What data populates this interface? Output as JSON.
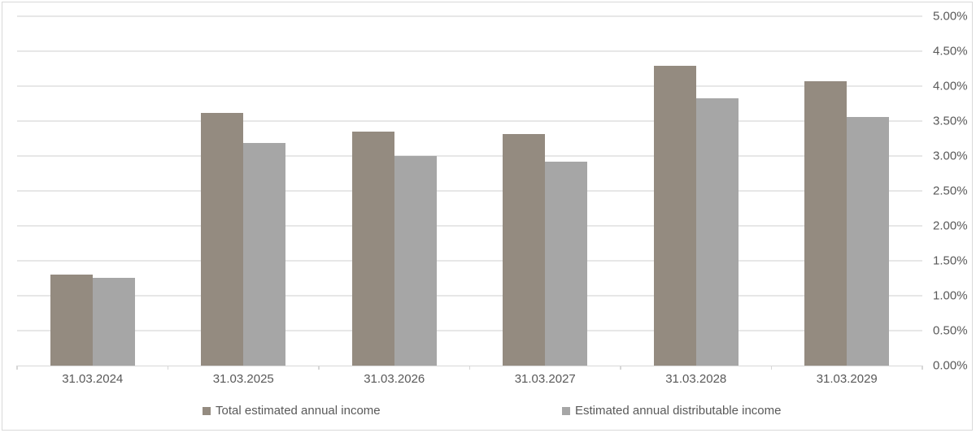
{
  "chart_data": {
    "type": "bar",
    "title": "",
    "categories": [
      "31.03.2024",
      "31.03.2025",
      "31.03.2026",
      "31.03.2027",
      "31.03.2028",
      "31.03.2029"
    ],
    "series": [
      {
        "name": "Total estimated annual income",
        "color": "#948B80",
        "values": [
          1.3,
          3.62,
          3.35,
          3.31,
          4.29,
          4.07
        ]
      },
      {
        "name": "Estimated annual distributable income",
        "color": "#A6A6A6",
        "values": [
          1.26,
          3.19,
          3.0,
          2.92,
          3.82,
          3.56
        ]
      }
    ],
    "y_axis": {
      "min": 0,
      "max": 5,
      "step": 0.5,
      "side": "right",
      "unit": "%",
      "tick_labels": [
        "0.00%",
        "0.50%",
        "1.00%",
        "1.50%",
        "2.00%",
        "2.50%",
        "3.00%",
        "3.50%",
        "4.00%",
        "4.50%",
        "5.00%"
      ]
    },
    "x_axis": {
      "tick_labels": [
        "31.03.2024",
        "31.03.2025",
        "31.03.2026",
        "31.03.2027",
        "31.03.2028",
        "31.03.2029"
      ]
    },
    "grid": true,
    "legend_position": "bottom"
  },
  "colors": {
    "background": "#FFFFFF",
    "border": "#D9D9D9",
    "gridline": "#E7E7E7",
    "axis_line": "#D7D7D7",
    "text": "#595959",
    "series1": "#948B80",
    "series2": "#A6A6A6"
  }
}
